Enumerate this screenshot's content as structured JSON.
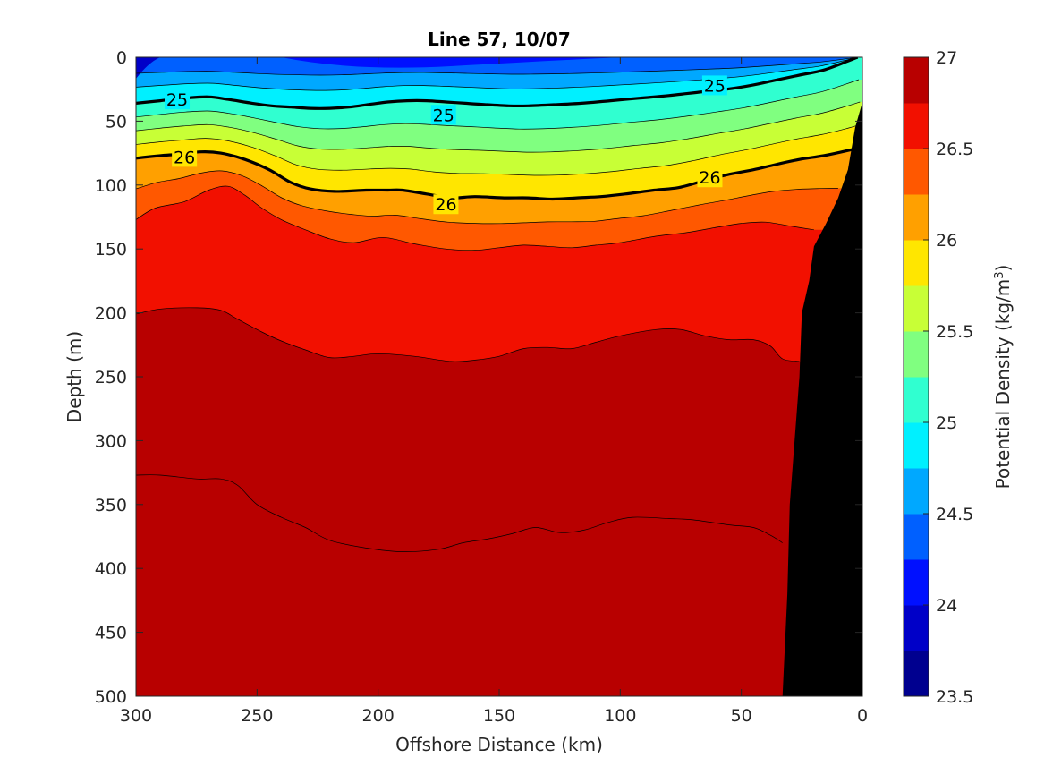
{
  "chart_data": {
    "type": "contour",
    "title": "Line 57, 10/07",
    "xlabel": "Offshore Distance (km)",
    "ylabel": "Depth (m)",
    "colorbar_label": "Potential Density (kg/m",
    "colorbar_label_sup": "3",
    "colorbar_label_end": ")",
    "xlim": [
      300,
      0
    ],
    "ylim": [
      0,
      500
    ],
    "x_axis_reversed": true,
    "y_axis_reversed": true,
    "x_ticks": [
      "300",
      "250",
      "200",
      "150",
      "100",
      "50",
      "0"
    ],
    "y_ticks": [
      "0",
      "50",
      "100",
      "150",
      "200",
      "250",
      "300",
      "350",
      "400",
      "450",
      "500"
    ],
    "colorbar_ticks": [
      "23.5",
      "24",
      "24.5",
      "25",
      "25.5",
      "26",
      "26.5",
      "27"
    ],
    "colorbar_range": [
      23.5,
      27
    ],
    "contour_interval": 0.25,
    "labeled_contours": [
      25,
      26
    ],
    "colormap": [
      "#00008f",
      "#0000c8",
      "#0010ff",
      "#0060ff",
      "#00a8ff",
      "#00f0ff",
      "#30ffd0",
      "#80ff80",
      "#c8ff36",
      "#ffe600",
      "#ffa000",
      "#ff5800",
      "#f21000",
      "#b80000"
    ],
    "contour_labels": [
      {
        "text": "25",
        "x": 283,
        "y": 33
      },
      {
        "text": "25",
        "x": 173,
        "y": 45
      },
      {
        "text": "25",
        "x": 61,
        "y": 22
      },
      {
        "text": "26",
        "x": 280,
        "y": 78
      },
      {
        "text": "26",
        "x": 172,
        "y": 115
      },
      {
        "text": "26",
        "x": 63,
        "y": 94
      }
    ],
    "isopycnals": [
      {
        "level": 27.0,
        "points": [
          [
            300,
            327
          ],
          [
            290,
            327
          ],
          [
            275,
            330
          ],
          [
            265,
            330
          ],
          [
            258,
            335
          ],
          [
            250,
            350
          ],
          [
            240,
            360
          ],
          [
            230,
            368
          ],
          [
            220,
            378
          ],
          [
            205,
            384
          ],
          [
            190,
            387
          ],
          [
            175,
            385
          ],
          [
            165,
            380
          ],
          [
            155,
            377
          ],
          [
            145,
            373
          ],
          [
            135,
            368
          ],
          [
            125,
            372
          ],
          [
            115,
            370
          ],
          [
            105,
            364
          ],
          [
            95,
            360
          ],
          [
            80,
            361
          ],
          [
            70,
            362
          ],
          [
            55,
            366
          ],
          [
            45,
            368
          ],
          [
            38,
            374
          ],
          [
            33,
            380
          ]
        ]
      },
      {
        "level": 26.75,
        "points": [
          [
            300,
            201
          ],
          [
            290,
            197
          ],
          [
            275,
            196
          ],
          [
            265,
            198
          ],
          [
            258,
            205
          ],
          [
            248,
            215
          ],
          [
            240,
            222
          ],
          [
            230,
            229
          ],
          [
            220,
            235
          ],
          [
            210,
            234
          ],
          [
            200,
            232
          ],
          [
            185,
            234
          ],
          [
            170,
            238
          ],
          [
            160,
            237
          ],
          [
            150,
            234
          ],
          [
            140,
            228
          ],
          [
            130,
            227
          ],
          [
            120,
            228
          ],
          [
            110,
            223
          ],
          [
            100,
            218
          ],
          [
            85,
            213
          ],
          [
            75,
            213
          ],
          [
            65,
            218
          ],
          [
            55,
            221
          ],
          [
            45,
            221
          ],
          [
            38,
            226
          ],
          [
            33,
            236
          ],
          [
            26,
            238
          ]
        ]
      },
      {
        "level": 26.5,
        "points": [
          [
            300,
            127
          ],
          [
            292,
            118
          ],
          [
            280,
            113
          ],
          [
            270,
            104
          ],
          [
            262,
            101
          ],
          [
            255,
            108
          ],
          [
            248,
            118
          ],
          [
            240,
            127
          ],
          [
            230,
            135
          ],
          [
            220,
            142
          ],
          [
            210,
            145
          ],
          [
            198,
            141
          ],
          [
            185,
            146
          ],
          [
            172,
            150
          ],
          [
            160,
            151
          ],
          [
            150,
            149
          ],
          [
            140,
            147
          ],
          [
            130,
            148
          ],
          [
            120,
            149
          ],
          [
            110,
            147
          ],
          [
            100,
            145
          ],
          [
            85,
            140
          ],
          [
            72,
            137
          ],
          [
            60,
            133
          ],
          [
            50,
            130
          ],
          [
            40,
            129
          ],
          [
            30,
            132
          ],
          [
            20,
            135
          ]
        ]
      },
      {
        "level": 26.0,
        "points": [
          [
            300,
            79
          ],
          [
            290,
            77
          ],
          [
            283,
            76
          ],
          [
            273,
            74
          ],
          [
            265,
            75
          ],
          [
            255,
            80
          ],
          [
            245,
            88
          ],
          [
            236,
            98
          ],
          [
            228,
            103
          ],
          [
            218,
            105
          ],
          [
            205,
            104
          ],
          [
            196,
            104
          ],
          [
            190,
            104
          ],
          [
            180,
            107
          ],
          [
            170,
            110
          ],
          [
            160,
            109
          ],
          [
            148,
            110
          ],
          [
            138,
            110
          ],
          [
            128,
            111
          ],
          [
            118,
            110
          ],
          [
            108,
            109
          ],
          [
            98,
            107
          ],
          [
            86,
            104
          ],
          [
            76,
            102
          ],
          [
            66,
            97
          ],
          [
            56,
            92
          ],
          [
            45,
            88
          ],
          [
            36,
            84
          ],
          [
            26,
            80
          ],
          [
            16,
            77
          ],
          [
            6,
            73
          ],
          [
            0,
            70
          ]
        ]
      },
      {
        "level": 25.0,
        "points": [
          [
            300,
            36
          ],
          [
            290,
            34
          ],
          [
            280,
            32
          ],
          [
            270,
            31
          ],
          [
            262,
            33
          ],
          [
            252,
            36
          ],
          [
            244,
            38
          ],
          [
            236,
            39
          ],
          [
            228,
            40
          ],
          [
            220,
            40
          ],
          [
            212,
            39
          ],
          [
            204,
            37
          ],
          [
            196,
            35
          ],
          [
            188,
            34
          ],
          [
            180,
            34
          ],
          [
            172,
            35
          ],
          [
            164,
            36
          ],
          [
            156,
            37
          ],
          [
            146,
            38
          ],
          [
            138,
            38
          ],
          [
            126,
            37
          ],
          [
            116,
            36
          ],
          [
            104,
            34
          ],
          [
            92,
            32
          ],
          [
            80,
            30
          ],
          [
            66,
            27
          ],
          [
            56,
            25
          ],
          [
            46,
            22
          ],
          [
            36,
            18
          ],
          [
            26,
            14
          ],
          [
            16,
            10
          ],
          [
            6,
            3
          ],
          [
            2,
            0
          ]
        ]
      }
    ],
    "regions": [
      {
        "label": "topography (black, nearshore)",
        "color": "#000000"
      }
    ]
  }
}
